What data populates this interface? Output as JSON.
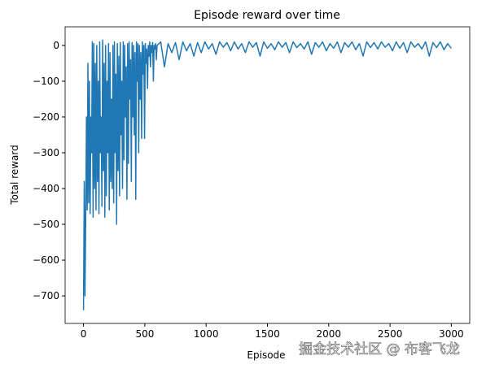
{
  "chart_data": {
    "type": "line",
    "title": "Episode reward over time",
    "x_label": "Episode",
    "y_label": "Total reward",
    "watermark": "掘金技术社区 @ 布客飞龙",
    "xlim": [
      -150,
      3150
    ],
    "ylim": [
      -777,
      52
    ],
    "xticks": [
      0,
      500,
      1000,
      1500,
      2000,
      2500,
      3000
    ],
    "yticks": [
      {
        "value": -700,
        "label": "−700"
      },
      {
        "value": -600,
        "label": "−600"
      },
      {
        "value": -500,
        "label": "−500"
      },
      {
        "value": -400,
        "label": "−400"
      },
      {
        "value": -300,
        "label": "−300"
      },
      {
        "value": -200,
        "label": "−200"
      },
      {
        "value": -100,
        "label": "−100"
      },
      0
    ],
    "x": [
      0,
      6,
      12,
      18,
      24,
      30,
      36,
      42,
      48,
      54,
      60,
      66,
      72,
      78,
      84,
      90,
      96,
      102,
      108,
      114,
      120,
      126,
      132,
      138,
      144,
      150,
      156,
      162,
      168,
      174,
      180,
      186,
      192,
      198,
      204,
      210,
      216,
      222,
      228,
      234,
      240,
      246,
      252,
      258,
      264,
      270,
      276,
      282,
      288,
      294,
      300,
      306,
      312,
      318,
      324,
      330,
      336,
      342,
      348,
      354,
      360,
      366,
      372,
      378,
      384,
      390,
      396,
      402,
      408,
      414,
      420,
      426,
      432,
      438,
      444,
      450,
      456,
      462,
      468,
      474,
      480,
      486,
      492,
      498,
      504,
      510,
      516,
      522,
      528,
      534,
      540,
      546,
      552,
      558,
      564,
      570,
      576,
      582,
      588,
      594,
      600,
      630,
      660,
      690,
      720,
      750,
      780,
      810,
      840,
      870,
      900,
      930,
      960,
      990,
      1020,
      1050,
      1080,
      1110,
      1140,
      1170,
      1200,
      1230,
      1260,
      1290,
      1320,
      1350,
      1380,
      1410,
      1440,
      1470,
      1500,
      1530,
      1560,
      1590,
      1620,
      1650,
      1680,
      1710,
      1740,
      1770,
      1800,
      1830,
      1860,
      1890,
      1920,
      1950,
      1980,
      2010,
      2040,
      2070,
      2100,
      2130,
      2160,
      2190,
      2220,
      2250,
      2280,
      2310,
      2340,
      2370,
      2400,
      2430,
      2460,
      2490,
      2520,
      2550,
      2580,
      2610,
      2640,
      2670,
      2700,
      2730,
      2760,
      2790,
      2820,
      2850,
      2880,
      2910,
      2940,
      2970,
      3000
    ],
    "series": [
      {
        "color": "#1f77b4",
        "values": [
          -740,
          -380,
          -700,
          -480,
          -200,
          -460,
          -50,
          -440,
          -100,
          -470,
          -200,
          -300,
          10,
          -480,
          5,
          -400,
          -50,
          -460,
          0,
          -380,
          -100,
          -470,
          10,
          -300,
          -200,
          -450,
          15,
          -350,
          -50,
          -480,
          0,
          -420,
          -100,
          -300,
          5,
          -460,
          -20,
          -380,
          -150,
          -400,
          0,
          -440,
          10,
          -300,
          -80,
          -500,
          5,
          -350,
          -30,
          -420,
          8,
          -250,
          -100,
          -400,
          10,
          -320,
          0,
          -200,
          -60,
          -430,
          5,
          -330,
          10,
          -150,
          -40,
          -380,
          8,
          -200,
          0,
          -250,
          -20,
          -430,
          10,
          -100,
          5,
          -300,
          0,
          -150,
          -20,
          -260,
          10,
          -80,
          0,
          -260,
          5,
          -50,
          -10,
          -120,
          0,
          -30,
          10,
          -60,
          0,
          -20,
          8,
          -100,
          0,
          -10,
          5,
          -40,
          0,
          10,
          -60,
          5,
          -20,
          8,
          -40,
          10,
          -15,
          5,
          -30,
          8,
          -20,
          10,
          -10,
          5,
          -25,
          10,
          -5,
          8,
          -15,
          10,
          -10,
          5,
          -20,
          10,
          -5,
          8,
          -30,
          10,
          -8,
          5,
          -12,
          10,
          -5,
          8,
          -20,
          10,
          -6,
          5,
          -10,
          10,
          -25,
          8,
          -5,
          10,
          -15,
          5,
          -8,
          10,
          -20,
          8,
          -5,
          10,
          -12,
          5,
          -30,
          10,
          -6,
          8,
          -10,
          10,
          -5,
          5,
          -15,
          10,
          -8,
          8,
          -20,
          10,
          -5,
          5,
          -10,
          10,
          -30,
          8,
          -6,
          10,
          -12,
          5,
          -8
        ]
      }
    ]
  }
}
